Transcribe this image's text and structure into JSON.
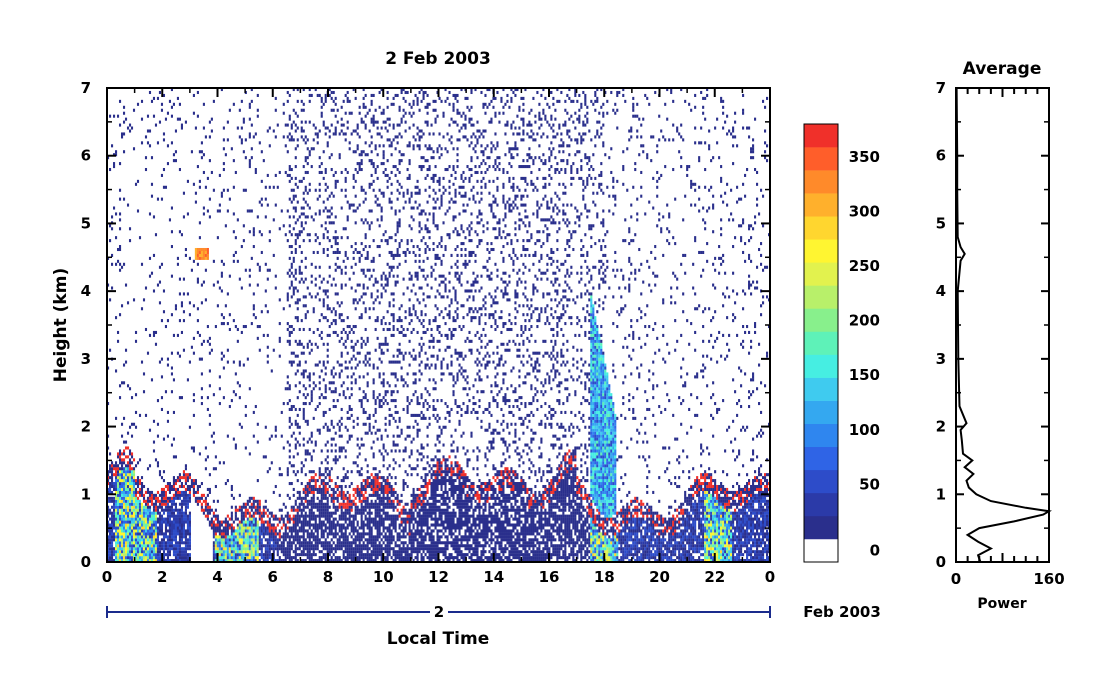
{
  "chart_data": [
    {
      "type": "heatmap",
      "title": "2 Feb 2003",
      "xlabel": "Local Time",
      "ylabel": "Height (km)",
      "xlim": [
        0,
        24
      ],
      "ylim": [
        0,
        7
      ],
      "x_ticks": [
        "0",
        "2",
        "4",
        "6",
        "8",
        "10",
        "12",
        "14",
        "16",
        "18",
        "20",
        "22",
        "0"
      ],
      "y_ticks": [
        "0",
        "1",
        "2",
        "3",
        "4",
        "5",
        "6",
        "7"
      ],
      "date_axis": {
        "day_label": "2",
        "month_label": "Feb 2003"
      },
      "colorbar": {
        "ticks": [
          "0",
          "50",
          "100",
          "150",
          "200",
          "250",
          "300",
          "350"
        ],
        "range": [
          0,
          380
        ],
        "colors": [
          "#ffffff",
          "#2a2f8c",
          "#2b3aa8",
          "#2d4cc9",
          "#2f64e6",
          "#2f86ef",
          "#34a8f0",
          "#3fcbef",
          "#46eee2",
          "#5ef2b8",
          "#88f08c",
          "#b8f06a",
          "#e2f24e",
          "#fff531",
          "#ffd62f",
          "#ffb02c",
          "#ff8a2a",
          "#ff5e2a",
          "#f0302a"
        ]
      },
      "features": [
        {
          "name": "cloud base layer",
          "x_range": [
            0,
            24
          ],
          "height_km": [
            0.7,
            1.3
          ]
        },
        {
          "name": "elevated layer",
          "x_range": [
            3.2,
            3.7
          ],
          "height_km": [
            4.5,
            4.6
          ]
        },
        {
          "name": "convective plume",
          "x_range": [
            17.5,
            18.5
          ],
          "height_km": [
            0,
            4.0
          ]
        }
      ]
    },
    {
      "type": "line",
      "title": "Average",
      "xlabel": "Power",
      "ylabel": "",
      "xlim": [
        0,
        160
      ],
      "ylim": [
        0,
        7
      ],
      "x_ticks": [
        "0",
        "160"
      ],
      "y_ticks": [
        "0",
        "1",
        "2",
        "3",
        "4",
        "5",
        "6",
        "7"
      ],
      "series": [
        {
          "height_km": [
            0.0,
            0.1,
            0.2,
            0.3,
            0.4,
            0.5,
            0.6,
            0.7,
            0.75,
            0.8,
            0.9,
            1.0,
            1.1,
            1.2,
            1.3,
            1.4,
            1.5,
            1.6,
            1.8,
            1.95,
            2.05,
            2.3,
            3.0,
            4.0,
            4.45,
            4.55,
            4.65,
            4.8,
            5.5,
            6.0,
            7.0
          ],
          "power": [
            42,
            38,
            60,
            38,
            20,
            40,
            100,
            150,
            160,
            120,
            60,
            35,
            22,
            18,
            30,
            15,
            28,
            12,
            10,
            8,
            18,
            6,
            4,
            3,
            8,
            15,
            8,
            3,
            2,
            2,
            1
          ]
        }
      ]
    }
  ]
}
